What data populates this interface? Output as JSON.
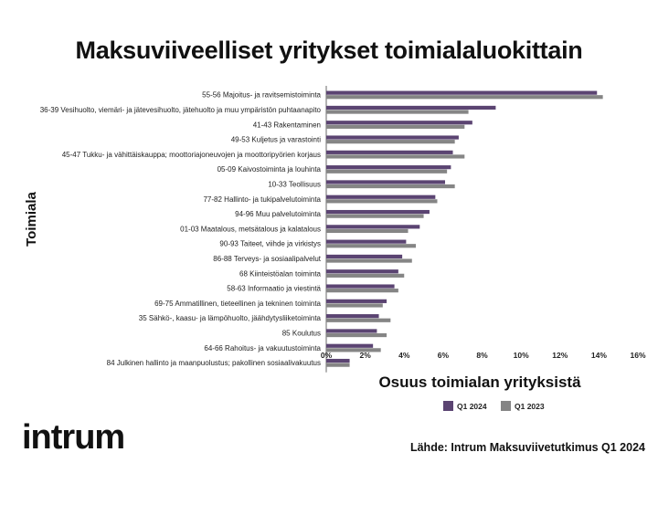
{
  "header": {
    "title": "Maksuviiveelliset yritykset toimialaluokittain"
  },
  "brand": {
    "logo_text": "intrum"
  },
  "source": {
    "text": "Lähde: Intrum Maksuviivetutkimus Q1 2024"
  },
  "colors": {
    "series_2024": "#5b4472",
    "series_2023": "#858585",
    "axis": "#444444"
  },
  "chart_data": {
    "type": "bar",
    "orientation": "horizontal",
    "xlabel": "Osuus toimialan yrityksistä",
    "ylabel": "Toimiala",
    "xlim": [
      0,
      16
    ],
    "x_ticks": [
      "0%",
      "2%",
      "4%",
      "6%",
      "8%",
      "10%",
      "12%",
      "14%",
      "16%"
    ],
    "grid": false,
    "legend_position": "bottom",
    "categories": [
      "55-56 Majoitus- ja ravitsemistoiminta",
      "36-39 Vesihuolto, viemäri- ja jätevesihuolto, jätehuolto ja muu ympäristön puhtaanapito",
      "41-43 Rakentaminen",
      "49-53 Kuljetus ja varastointi",
      "45-47 Tukku- ja vähittäiskauppa; moottoriajoneuvojen ja moottoripyörien korjaus",
      "05-09 Kaivostoiminta ja louhinta",
      "10-33 Teollisuus",
      "77-82 Hallinto- ja tukipalvelutoiminta",
      "94-96 Muu palvelutoiminta",
      "01-03 Maatalous, metsätalous ja kalatalous",
      "90-93 Taiteet, viihde ja virkistys",
      "86-88 Terveys- ja sosiaalipalvelut",
      "68 Kiinteistöalan toiminta",
      "58-63 Informaatio ja viestintä",
      "69-75 Ammatillinen, tieteellinen ja tekninen toiminta",
      "35 Sähkö-, kaasu- ja lämpöhuolto, jäähdytysliiketoiminta",
      "85 Koulutus",
      "64-66 Rahoitus- ja vakuutustoiminta",
      "84 Julkinen hallinto ja maanpuolustus; pakollinen sosiaalivakuutus"
    ],
    "series": [
      {
        "name": "Q1 2024",
        "values": [
          13.9,
          8.7,
          7.5,
          6.8,
          6.5,
          6.4,
          6.1,
          5.6,
          5.3,
          4.8,
          4.1,
          3.9,
          3.7,
          3.5,
          3.1,
          2.7,
          2.6,
          2.4,
          1.2
        ]
      },
      {
        "name": "Q1 2023",
        "values": [
          14.2,
          7.3,
          7.1,
          6.6,
          7.1,
          6.2,
          6.6,
          5.7,
          5.0,
          4.2,
          4.6,
          4.4,
          4.0,
          3.7,
          2.9,
          3.3,
          3.1,
          2.8,
          1.2
        ]
      }
    ]
  }
}
